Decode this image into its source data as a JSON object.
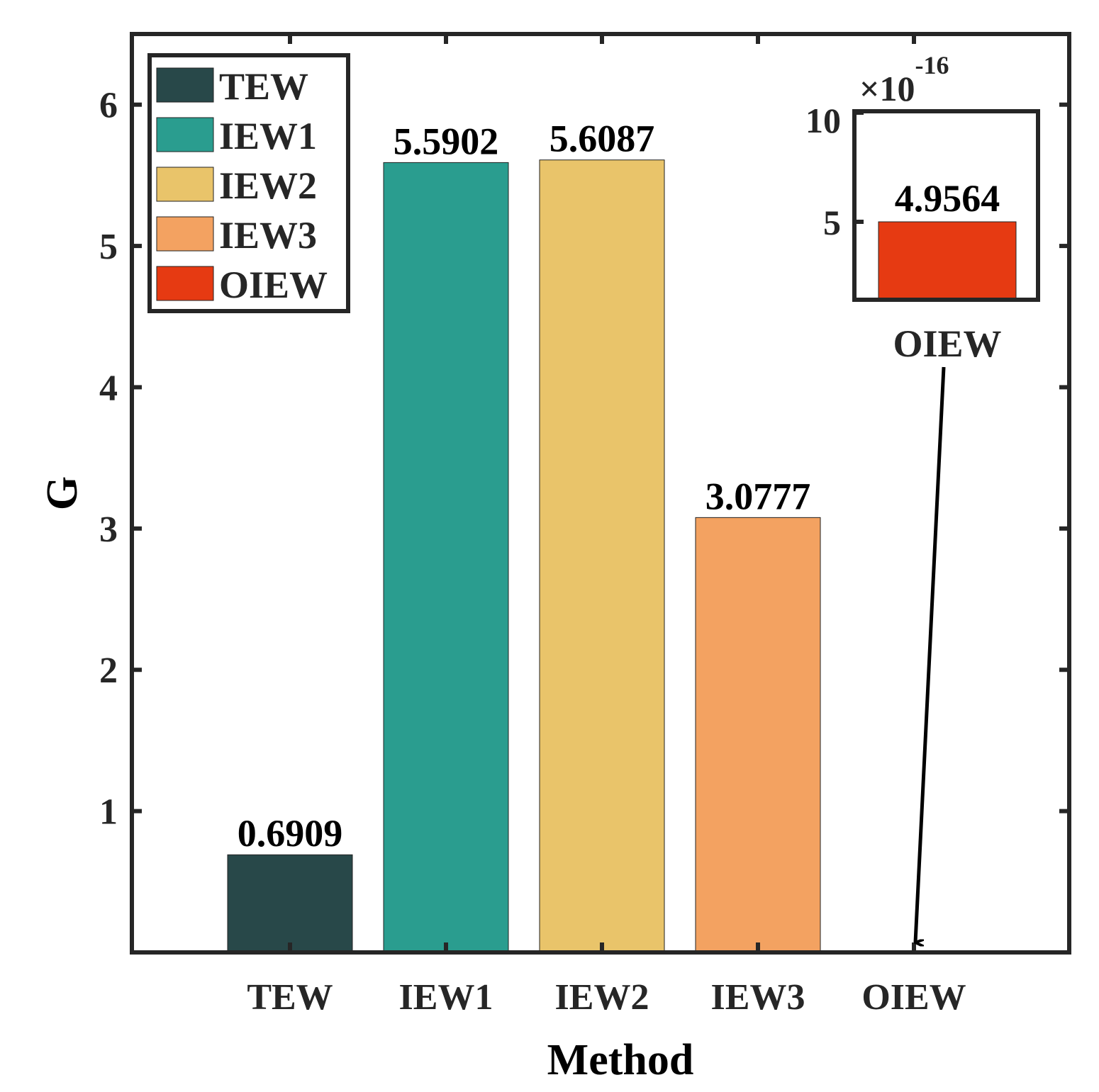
{
  "chart_data": {
    "type": "bar",
    "title": "",
    "xlabel": "Method",
    "ylabel": "G",
    "categories": [
      "TEW",
      "IEW1",
      "IEW2",
      "IEW3",
      "OIEW"
    ],
    "values": [
      0.6909,
      5.5902,
      5.6087,
      3.0777,
      4.9564e-16
    ],
    "data_labels": [
      "0.6909",
      "5.5902",
      "5.6087",
      "3.0777",
      ""
    ],
    "colors": [
      "#284849",
      "#2a9d8f",
      "#e9c46a",
      "#f3a261",
      "#e63a12"
    ],
    "ylim": [
      0,
      6.5
    ],
    "yticks": [
      1,
      2,
      3,
      4,
      5,
      6
    ],
    "ytick_labels": [
      "1",
      "2",
      "3",
      "4",
      "5",
      "6"
    ],
    "grid": false,
    "legend": {
      "placement": "top-left",
      "entries": [
        "TEW",
        "IEW1",
        "IEW2",
        "IEW3",
        "OIEW"
      ]
    },
    "inset": {
      "category": "OIEW",
      "value": 4.9564,
      "value_label": "4.9564",
      "exponent_label": "×10",
      "exponent_power": "-16",
      "yticks": [
        5,
        10
      ],
      "ytick_labels": [
        "5",
        "10"
      ],
      "ylim": [
        0,
        10
      ],
      "annotation": "arrow from inset to OIEW bar"
    }
  }
}
